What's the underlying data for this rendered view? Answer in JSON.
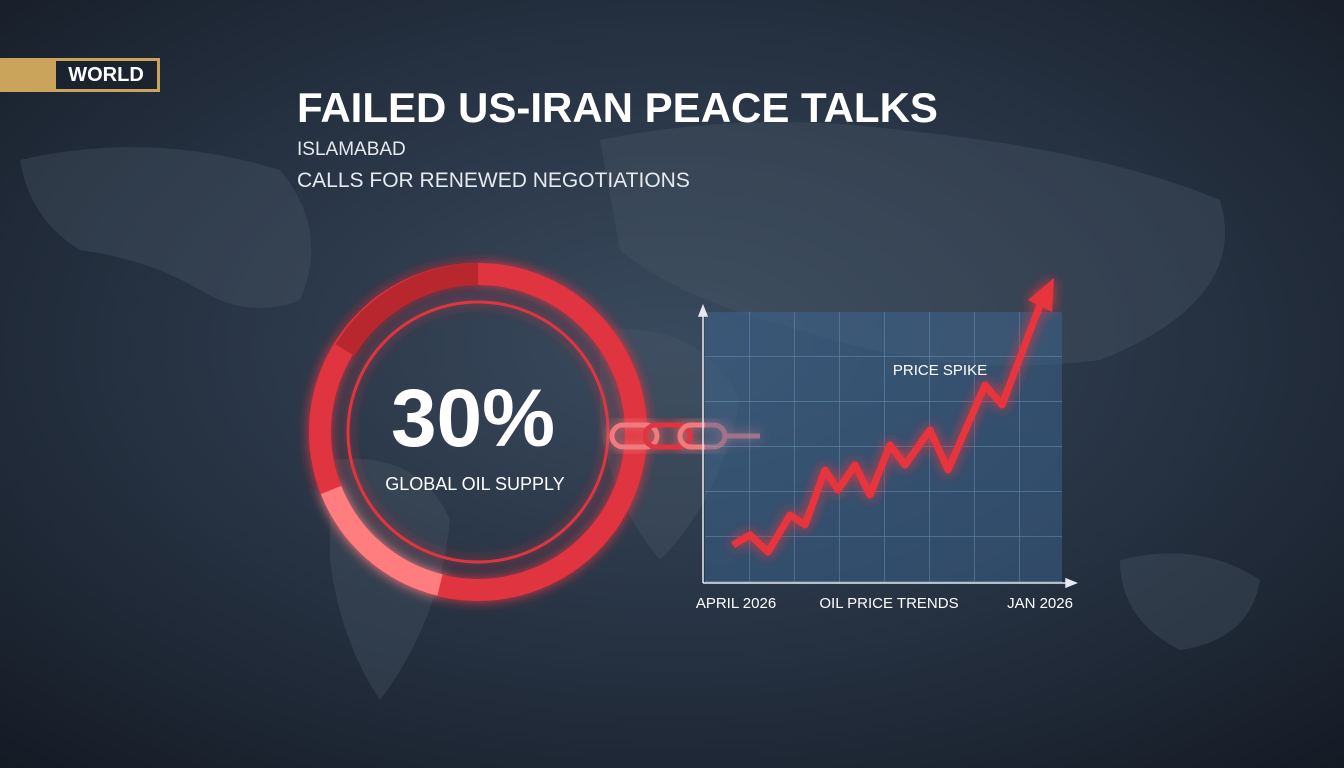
{
  "badge": "WORLD",
  "header": {
    "title": "FAILED US-IRAN PEACE TALKS",
    "location": "ISLAMABAD",
    "tagline": "CALLS FOR RENEWED NEGOTIATIONS"
  },
  "stat": {
    "value": "30%",
    "label": "GLOBAL OIL SUPPLY"
  },
  "trend": {
    "annotation": "PRICE SPIKE",
    "start_label": "APRIL 2026",
    "title": "OIL PRICE TRENDS",
    "end_label": "JAN 2026"
  }
}
